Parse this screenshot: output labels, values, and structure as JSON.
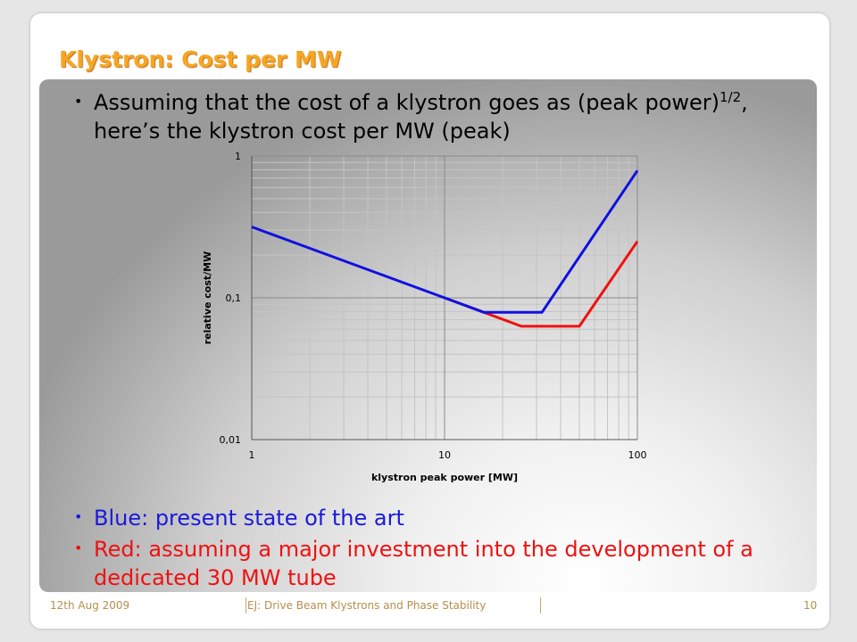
{
  "slide": {
    "title": "Klystron: Cost per MW",
    "bullets": [
      {
        "text_before": "Assuming that the cost of a klystron goes as (peak power)",
        "sup": "1/2",
        "text_after": ", here’s the klystron cost per MW (peak)",
        "color": "#000000"
      },
      {
        "text": "Blue: present state of the art",
        "color": "#1a1adb"
      },
      {
        "text": "Red: assuming a major investment into the development of a dedicated 30 MW tube",
        "color": "#ee1111"
      }
    ],
    "footer": {
      "date": "12th Aug 2009",
      "center": "EJ: Drive Beam Klystrons and Phase Stability",
      "page": "10"
    }
  },
  "chart_data": {
    "type": "line",
    "xlabel": "klystron peak power [MW]",
    "ylabel": "relative cost/MW",
    "xscale": "log",
    "yscale": "log",
    "xlim": [
      1,
      100
    ],
    "ylim": [
      0.01,
      1
    ],
    "xticks": [
      "1",
      "10",
      "100"
    ],
    "yticks": [
      "0,01",
      "0,1",
      "1"
    ],
    "grid": true,
    "series": [
      {
        "color": "#1010e0",
        "points": [
          [
            1,
            0.316
          ],
          [
            10,
            0.1
          ],
          [
            16,
            0.079
          ],
          [
            32,
            0.079
          ],
          [
            100,
            0.79
          ]
        ]
      },
      {
        "color": "#ee1111",
        "points": [
          [
            10,
            0.1
          ],
          [
            16,
            0.079
          ],
          [
            25,
            0.063
          ],
          [
            50,
            0.063
          ],
          [
            100,
            0.25
          ]
        ]
      }
    ]
  }
}
